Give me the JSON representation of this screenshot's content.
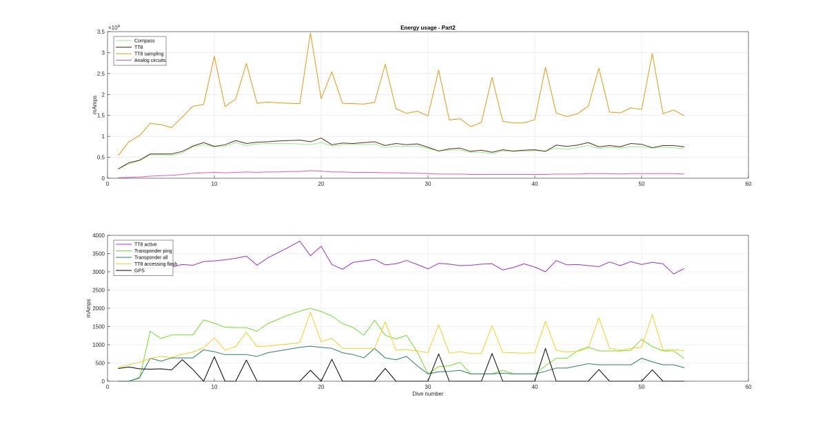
{
  "chart_data": [
    {
      "type": "line",
      "title": "Energy usage - Part2",
      "xlabel": "",
      "ylabel": "mAmps",
      "exponent_label": "×10",
      "exponent_power": "4",
      "xlim": [
        0,
        60
      ],
      "ylim": [
        0,
        35000
      ],
      "xticks": [
        0,
        10,
        20,
        30,
        40,
        50,
        60
      ],
      "yticks": [
        0,
        5000,
        10000,
        15000,
        20000,
        25000,
        30000,
        35000
      ],
      "ytick_labels": [
        "0",
        "0.5",
        "1",
        "1.5",
        "2",
        "2.5",
        "3",
        "3.5"
      ],
      "grid": true,
      "legend_position": "top-left",
      "x": [
        1,
        2,
        3,
        4,
        5,
        6,
        7,
        8,
        9,
        10,
        11,
        12,
        13,
        14,
        15,
        16,
        17,
        18,
        19,
        20,
        21,
        22,
        23,
        24,
        25,
        26,
        27,
        28,
        29,
        30,
        31,
        32,
        33,
        34,
        35,
        36,
        37,
        38,
        39,
        40,
        41,
        42,
        43,
        44,
        45,
        46,
        47,
        48,
        49,
        50,
        51,
        52,
        53,
        54
      ],
      "series": [
        {
          "name": "Compass",
          "color": "#90ee90",
          "values": [
            2200,
            3400,
            4200,
            5600,
            5600,
            5500,
            6000,
            7500,
            8000,
            7500,
            7600,
            8500,
            7800,
            8200,
            8300,
            8300,
            8300,
            8200,
            8000,
            8500,
            7700,
            8000,
            8100,
            8000,
            8200,
            7300,
            7700,
            7600,
            7700,
            7100,
            6500,
            6700,
            6800,
            6200,
            6200,
            5900,
            6500,
            6400,
            6500,
            6600,
            6500,
            7200,
            6900,
            7300,
            7800,
            7100,
            7400,
            7200,
            7500,
            7500,
            7200,
            7400,
            7300,
            7000
          ]
        },
        {
          "name": "TT8",
          "color": "#5c2b10",
          "values": [
            2200,
            3700,
            4300,
            5800,
            5800,
            5800,
            6400,
            7700,
            8500,
            7600,
            8000,
            9000,
            8300,
            8600,
            8700,
            8900,
            9000,
            9100,
            8700,
            9600,
            8000,
            8400,
            8300,
            8500,
            8700,
            7800,
            8300,
            8000,
            8200,
            7400,
            6500,
            7000,
            7200,
            6400,
            6700,
            6200,
            6800,
            6500,
            6700,
            6800,
            6400,
            7900,
            7600,
            7900,
            8500,
            7500,
            7800,
            7500,
            8300,
            8100,
            7300,
            7800,
            7800,
            7500
          ]
        },
        {
          "name": "TT8 sampling",
          "color": "#e8950f",
          "values": [
            5400,
            8700,
            10200,
            13100,
            12800,
            12100,
            14600,
            17200,
            17600,
            29100,
            17100,
            18900,
            27400,
            17900,
            18200,
            18000,
            17900,
            17800,
            34700,
            19000,
            25400,
            17900,
            17800,
            17700,
            18100,
            27200,
            16600,
            15500,
            16000,
            14900,
            25800,
            13900,
            14200,
            12300,
            13300,
            24100,
            13600,
            13200,
            13200,
            14000,
            26500,
            15600,
            14700,
            15400,
            17200,
            26300,
            15800,
            15600,
            16800,
            16400,
            29800,
            15400,
            16300,
            14900
          ]
        },
        {
          "name": "Analog circuits",
          "color": "#e05cb8",
          "values": [
            100,
            200,
            300,
            500,
            600,
            700,
            900,
            1200,
            1300,
            1400,
            1300,
            1400,
            1500,
            1400,
            1500,
            1500,
            1600,
            1600,
            1800,
            1700,
            1500,
            1500,
            1400,
            1400,
            1400,
            1300,
            1300,
            1200,
            1200,
            1100,
            1000,
            1000,
            1000,
            900,
            900,
            900,
            900,
            900,
            900,
            900,
            900,
            1000,
            1000,
            1000,
            1100,
            1100,
            1100,
            1000,
            1100,
            1100,
            1100,
            1100,
            1100,
            1000
          ]
        }
      ]
    },
    {
      "type": "line",
      "title": "",
      "xlabel": "Dive number",
      "ylabel": "mAmps",
      "xlim": [
        0,
        60
      ],
      "ylim": [
        0,
        4000
      ],
      "xticks": [
        0,
        10,
        20,
        30,
        40,
        50,
        60
      ],
      "yticks": [
        0,
        500,
        1000,
        1500,
        2000,
        2500,
        3000,
        3500,
        4000
      ],
      "ytick_labels": [
        "0",
        "500",
        "1000",
        "1500",
        "2000",
        "2500",
        "3000",
        "3500",
        "4000"
      ],
      "grid": true,
      "legend_position": "top-left",
      "x": [
        1,
        2,
        3,
        4,
        5,
        6,
        7,
        8,
        9,
        10,
        11,
        12,
        13,
        14,
        15,
        16,
        17,
        18,
        19,
        20,
        21,
        22,
        23,
        24,
        25,
        26,
        27,
        28,
        29,
        30,
        31,
        32,
        33,
        34,
        35,
        36,
        37,
        38,
        39,
        40,
        41,
        42,
        43,
        44,
        45,
        46,
        47,
        48,
        49,
        50,
        51,
        52,
        53,
        54
      ],
      "series": [
        {
          "name": "TT8 active",
          "color": "#9b30c8",
          "values": [
            2950,
            3020,
            3080,
            3150,
            3150,
            3130,
            3200,
            3180,
            3280,
            3300,
            3330,
            3370,
            3430,
            3180,
            3380,
            3530,
            3680,
            3840,
            3440,
            3700,
            3200,
            3070,
            3260,
            3300,
            3340,
            3190,
            3220,
            3310,
            3200,
            3080,
            3230,
            3210,
            3170,
            3180,
            3210,
            3220,
            3050,
            3120,
            3220,
            3130,
            3000,
            3310,
            3190,
            3200,
            3170,
            3140,
            3270,
            3170,
            3280,
            3200,
            3260,
            3220,
            2940,
            3090
          ]
        },
        {
          "name": "Transponder ping",
          "color": "#6ee02a",
          "values": [
            0,
            0,
            80,
            1370,
            1170,
            1270,
            1270,
            1270,
            1680,
            1590,
            1480,
            1470,
            1470,
            1370,
            1580,
            1700,
            1820,
            1920,
            2000,
            1910,
            1790,
            1580,
            1470,
            1260,
            1670,
            1260,
            1160,
            1260,
            800,
            200,
            400,
            420,
            520,
            200,
            200,
            200,
            300,
            200,
            200,
            200,
            420,
            630,
            630,
            830,
            940,
            830,
            830,
            830,
            850,
            1150,
            950,
            830,
            830,
            620
          ]
        },
        {
          "name": "Transponder all",
          "color": "#2b7a6a",
          "values": [
            0,
            0,
            100,
            630,
            550,
            640,
            640,
            640,
            860,
            810,
            730,
            730,
            730,
            680,
            780,
            830,
            880,
            930,
            960,
            930,
            900,
            780,
            730,
            640,
            900,
            640,
            590,
            680,
            420,
            200,
            260,
            270,
            300,
            200,
            200,
            200,
            220,
            200,
            200,
            200,
            270,
            360,
            360,
            420,
            480,
            450,
            450,
            450,
            450,
            630,
            530,
            450,
            450,
            370
          ]
        },
        {
          "name": "TT8 accessing flash",
          "color": "#f5d020",
          "values": [
            380,
            450,
            520,
            630,
            680,
            650,
            740,
            800,
            920,
            1190,
            850,
            950,
            1340,
            950,
            960,
            1000,
            1020,
            1060,
            1890,
            1080,
            1180,
            900,
            900,
            900,
            900,
            1630,
            850,
            870,
            830,
            780,
            1550,
            770,
            810,
            760,
            760,
            1520,
            790,
            780,
            770,
            780,
            1640,
            850,
            800,
            820,
            900,
            1740,
            900,
            850,
            900,
            930,
            1830,
            850,
            870,
            830
          ]
        },
        {
          "name": "GPS",
          "color": "#000000",
          "values": [
            350,
            390,
            340,
            330,
            340,
            310,
            590,
            320,
            0,
            670,
            0,
            0,
            580,
            0,
            0,
            0,
            0,
            0,
            300,
            0,
            600,
            0,
            0,
            0,
            0,
            350,
            0,
            0,
            0,
            0,
            750,
            0,
            0,
            0,
            0,
            760,
            0,
            0,
            0,
            0,
            900,
            0,
            0,
            0,
            0,
            320,
            0,
            0,
            0,
            0,
            310,
            0,
            0,
            0
          ]
        }
      ]
    }
  ]
}
